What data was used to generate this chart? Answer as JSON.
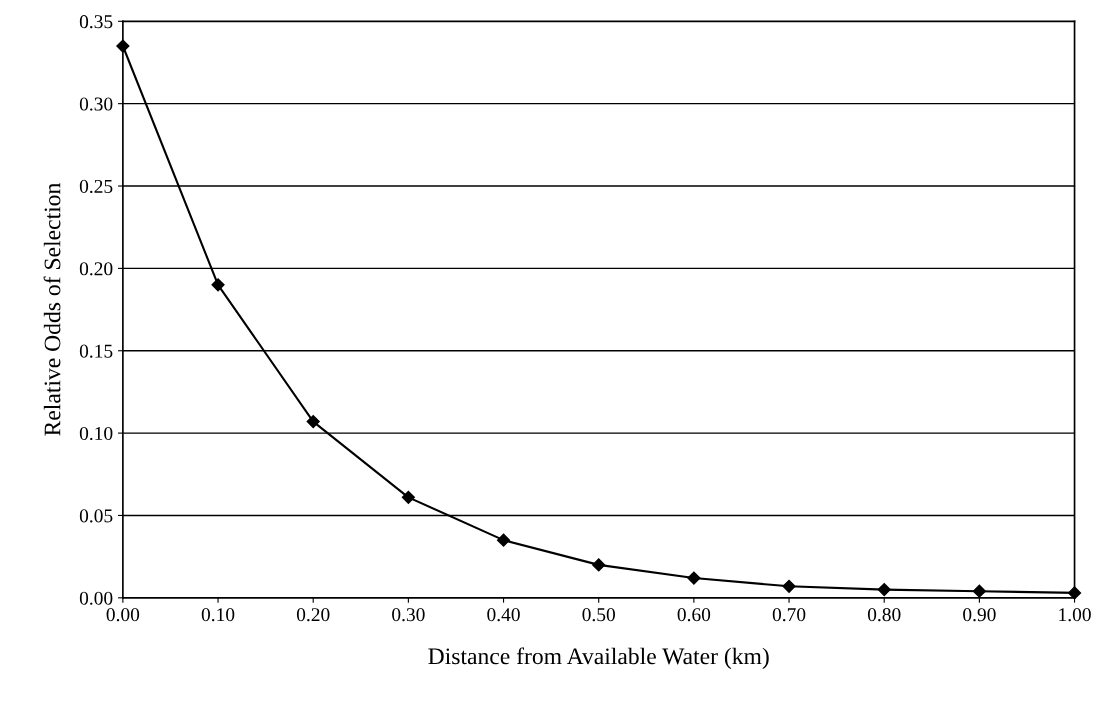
{
  "chart_data": {
    "type": "line",
    "xlabel": "Distance from Available Water (km)",
    "ylabel": "Relative Odds of Selection",
    "x": [
      0.0,
      0.1,
      0.2,
      0.3,
      0.4,
      0.5,
      0.6,
      0.7,
      0.8,
      0.9,
      1.0
    ],
    "series": [
      {
        "color": "#000000",
        "values": [
          0.335,
          0.19,
          0.107,
          0.061,
          0.035,
          0.02,
          0.012,
          0.007,
          0.005,
          0.004,
          0.003
        ]
      }
    ],
    "xlim": [
      0,
      1
    ],
    "ylim": [
      0,
      0.35
    ],
    "xticks": [
      {
        "value": 0,
        "label": "0.00"
      },
      {
        "value": 0.1,
        "label": "0.10"
      },
      {
        "value": 0.2,
        "label": "0.20"
      },
      {
        "value": 0.3,
        "label": "0.30"
      },
      {
        "value": 0.4,
        "label": "0.40"
      },
      {
        "value": 0.5,
        "label": "0.50"
      },
      {
        "value": 0.6,
        "label": "0.60"
      },
      {
        "value": 0.7,
        "label": "0.70"
      },
      {
        "value": 0.8,
        "label": "0.80"
      },
      {
        "value": 0.9,
        "label": "0.90"
      },
      {
        "value": 1,
        "label": "1.00"
      }
    ],
    "yticks": [
      {
        "value": 0,
        "label": "0.00"
      },
      {
        "value": 0.05,
        "label": "0.05"
      },
      {
        "value": 0.1,
        "label": "0.10"
      },
      {
        "value": 0.15,
        "label": "0.15"
      },
      {
        "value": 0.2,
        "label": "0.20"
      },
      {
        "value": 0.25,
        "label": "0.25"
      },
      {
        "value": 0.3,
        "label": "0.30"
      },
      {
        "value": 0.35,
        "label": "0.35"
      }
    ],
    "grid": "y",
    "marker": "diamond",
    "line_style": "solid"
  }
}
